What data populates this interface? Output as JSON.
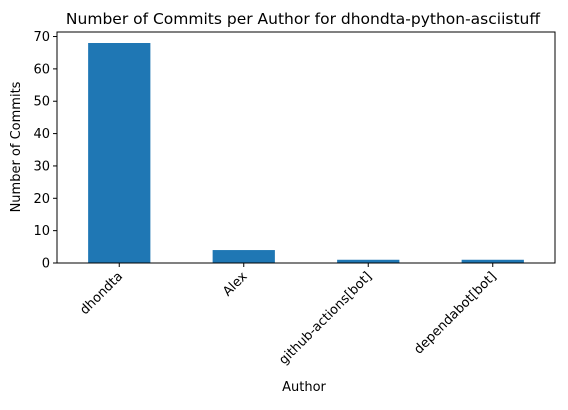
{
  "chart_data": {
    "type": "bar",
    "title": "Number of Commits per Author for dhondta-python-asciistuff",
    "xlabel": "Author",
    "ylabel": "Number of Commits",
    "categories": [
      "dhondta",
      "Alex",
      "github-actions[bot]",
      "dependabot[bot]"
    ],
    "values": [
      68,
      4,
      1,
      1
    ],
    "ylim": [
      0,
      71.4
    ],
    "yticks": [
      0,
      10,
      20,
      30,
      40,
      50,
      60,
      70
    ],
    "bar_color": "#1f77b4",
    "grid": false,
    "legend": "none"
  }
}
